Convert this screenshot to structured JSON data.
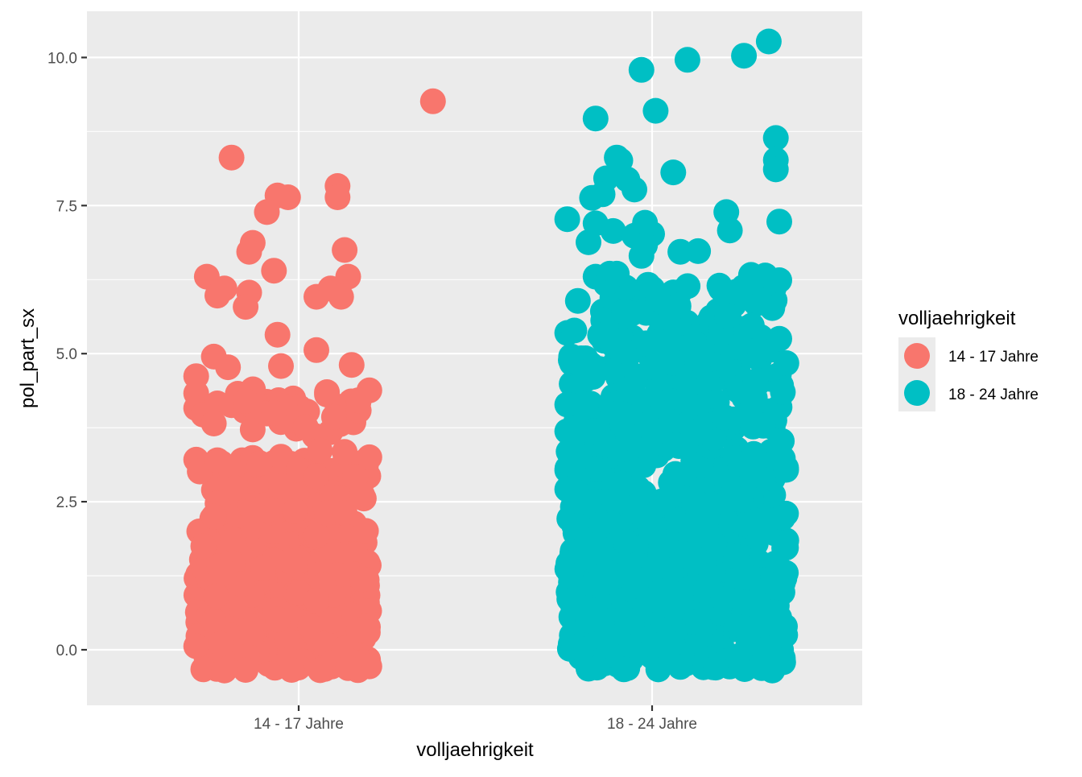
{
  "chart_data": {
    "type": "scatter",
    "xlabel": "volljaehrigkeit",
    "ylabel": "pol_part_sx",
    "categories": [
      "14 - 17 Jahre",
      "18 - 24 Jahre"
    ],
    "ylim": [
      -0.85,
      10.9
    ],
    "yticks": [
      0.0,
      2.5,
      5.0,
      7.5,
      10.0
    ],
    "ytick_labels": [
      "0.0",
      "2.5",
      "5.0",
      "7.5",
      "10.0"
    ],
    "grid": true,
    "jitter": {
      "width": 0.4,
      "height": 0.4
    },
    "legend": {
      "title": "volljaehrigkeit",
      "position": "right",
      "entries": [
        "14 - 17 Jahre",
        "18 - 24 Jahre"
      ]
    },
    "series": [
      {
        "name": "14 - 17 Jahre",
        "color": "#F8766D",
        "point_count": 560,
        "points": [
          [
            1.38,
            9.26
          ],
          [
            0.81,
            8.31
          ],
          [
            1.11,
            7.83
          ],
          [
            1.11,
            7.64
          ],
          [
            0.97,
            7.64
          ],
          [
            0.94,
            7.67
          ],
          [
            0.91,
            7.39
          ],
          [
            0.87,
            6.87
          ],
          [
            0.86,
            6.72
          ],
          [
            1.13,
            6.75
          ],
          [
            0.93,
            6.4
          ],
          [
            0.74,
            6.3
          ],
          [
            0.79,
            6.1
          ],
          [
            0.77,
            5.98
          ],
          [
            0.86,
            6.03
          ],
          [
            1.05,
            5.96
          ],
          [
            1.09,
            6.1
          ],
          [
            1.14,
            6.3
          ],
          [
            1.12,
            5.96
          ],
          [
            0.85,
            5.79
          ],
          [
            0.94,
            5.32
          ],
          [
            1.05,
            5.06
          ],
          [
            0.95,
            4.79
          ],
          [
            0.71,
            4.62
          ],
          [
            0.76,
            4.95
          ],
          [
            0.8,
            4.77
          ],
          [
            0.71,
            4.33
          ],
          [
            0.71,
            4.08
          ],
          [
            0.73,
            3.97
          ],
          [
            0.77,
            4.16
          ],
          [
            0.81,
            4.13
          ],
          [
            0.83,
            4.27
          ],
          [
            0.85,
            4.2
          ],
          [
            0.87,
            3.72
          ],
          [
            0.76,
            3.82
          ],
          [
            0.91,
            3.99
          ],
          [
            0.93,
            4.0
          ],
          [
            1.08,
            4.31
          ],
          [
            1.2,
            4.38
          ],
          [
            1.17,
            4.04
          ],
          [
            1.15,
            4.81
          ],
          [
            1.17,
            4.21
          ],
          [
            1.08,
            4.35
          ],
          [
            1.1,
            3.93
          ],
          [
            1.02,
            3.76
          ],
          [
            0.71,
            3.21
          ],
          [
            0.72,
            3.01
          ],
          [
            0.77,
            3.2
          ],
          [
            0.81,
            3.0
          ],
          [
            0.84,
            3.2
          ],
          [
            0.87,
            3.24
          ],
          [
            0.89,
            3.15
          ],
          [
            0.95,
            3.26
          ],
          [
            1.0,
            3.04
          ],
          [
            1.06,
            3.36
          ],
          [
            1.13,
            3.34
          ],
          [
            1.2,
            3.25
          ],
          [
            1.16,
            2.92
          ],
          [
            1.05,
            2.93
          ],
          [
            0.95,
            2.76
          ],
          [
            0.82,
            2.73
          ],
          [
            0.87,
            2.36
          ],
          [
            1.08,
            2.31
          ],
          [
            0.73,
            1.99
          ],
          [
            0.73,
            1.75
          ],
          [
            0.76,
            2.25
          ],
          [
            0.99,
            2.34
          ],
          [
            1.13,
            2.31
          ],
          [
            1.18,
            2.61
          ],
          [
            0.79,
            1.31
          ],
          [
            0.9,
            1.38
          ],
          [
            1.07,
            1.09
          ],
          [
            1.18,
            1.19
          ],
          [
            1.05,
            0.83
          ],
          [
            0.71,
            0.06
          ],
          [
            0.73,
            -0.33
          ],
          [
            1.2,
            -0.28
          ],
          [
            1.14,
            -0.31
          ],
          [
            0.98,
            -0.34
          ],
          [
            0.85,
            -0.34
          ],
          [
            0.79,
            -0.35
          ],
          [
            1.17,
            0.33
          ]
        ],
        "fill_regions": [
          {
            "x": [
              0.71,
              1.2
            ],
            "y": [
              -0.35,
              2.3
            ],
            "n": 340
          },
          {
            "x": [
              0.75,
              1.2
            ],
            "y": [
              2.3,
              3.2
            ],
            "n": 70
          },
          {
            "x": [
              0.8,
              1.17
            ],
            "y": [
              3.6,
              4.4
            ],
            "n": 30
          }
        ]
      },
      {
        "name": "18 - 24 Jahre",
        "color": "#00BFC4",
        "point_count": 880,
        "points": [
          [
            2.33,
            10.27
          ],
          [
            2.26,
            10.03
          ],
          [
            2.1,
            9.96
          ],
          [
            1.97,
            9.79
          ],
          [
            2.01,
            9.1
          ],
          [
            1.84,
            8.97
          ],
          [
            2.35,
            8.64
          ],
          [
            1.9,
            8.31
          ],
          [
            1.91,
            8.26
          ],
          [
            2.35,
            8.27
          ],
          [
            2.35,
            8.11
          ],
          [
            1.87,
            7.96
          ],
          [
            1.93,
            7.94
          ],
          [
            2.06,
            8.06
          ],
          [
            1.95,
            7.77
          ],
          [
            1.83,
            7.63
          ],
          [
            1.86,
            7.69
          ],
          [
            1.76,
            7.27
          ],
          [
            1.84,
            7.2
          ],
          [
            1.89,
            7.07
          ],
          [
            1.95,
            6.99
          ],
          [
            1.98,
            7.21
          ],
          [
            2.0,
            7.02
          ],
          [
            1.98,
            6.83
          ],
          [
            1.97,
            6.65
          ],
          [
            2.21,
            7.39
          ],
          [
            2.22,
            7.08
          ],
          [
            2.36,
            7.23
          ],
          [
            2.08,
            6.72
          ],
          [
            2.13,
            6.73
          ],
          [
            1.82,
            6.88
          ],
          [
            1.84,
            6.3
          ],
          [
            1.88,
            6.35
          ],
          [
            1.9,
            6.35
          ],
          [
            1.79,
            5.89
          ],
          [
            1.92,
            5.71
          ],
          [
            2.34,
            5.77
          ],
          [
            2.36,
            6.24
          ],
          [
            2.32,
            6.32
          ],
          [
            2.28,
            6.33
          ],
          [
            1.76,
            5.35
          ],
          [
            1.78,
            5.39
          ],
          [
            1.77,
            4.89
          ],
          [
            1.76,
            4.14
          ],
          [
            1.76,
            3.69
          ],
          [
            1.76,
            3.03
          ],
          [
            1.76,
            2.71
          ],
          [
            1.78,
            2.09
          ],
          [
            1.77,
            1.25
          ],
          [
            1.79,
            0.74
          ],
          [
            1.78,
            0.05
          ],
          [
            1.82,
            -0.32
          ],
          [
            1.92,
            -0.33
          ],
          [
            2.08,
            -0.29
          ],
          [
            2.18,
            -0.3
          ],
          [
            2.31,
            -0.31
          ],
          [
            2.34,
            -0.35
          ],
          [
            2.37,
            -0.14
          ],
          [
            2.37,
            0.25
          ],
          [
            2.37,
            1.13
          ],
          [
            2.37,
            2.23
          ],
          [
            2.37,
            3.23
          ],
          [
            2.37,
            4.35
          ],
          [
            2.38,
            4.84
          ],
          [
            2.36,
            5.25
          ]
        ],
        "fill_regions": [
          {
            "x": [
              1.76,
              2.38
            ],
            "y": [
              -0.35,
              3.4
            ],
            "n": 560
          },
          {
            "x": [
              1.77,
              2.37
            ],
            "y": [
              3.4,
              5.3
            ],
            "n": 200
          },
          {
            "x": [
              1.85,
              2.35
            ],
            "y": [
              5.3,
              6.2
            ],
            "n": 55
          }
        ]
      }
    ]
  }
}
